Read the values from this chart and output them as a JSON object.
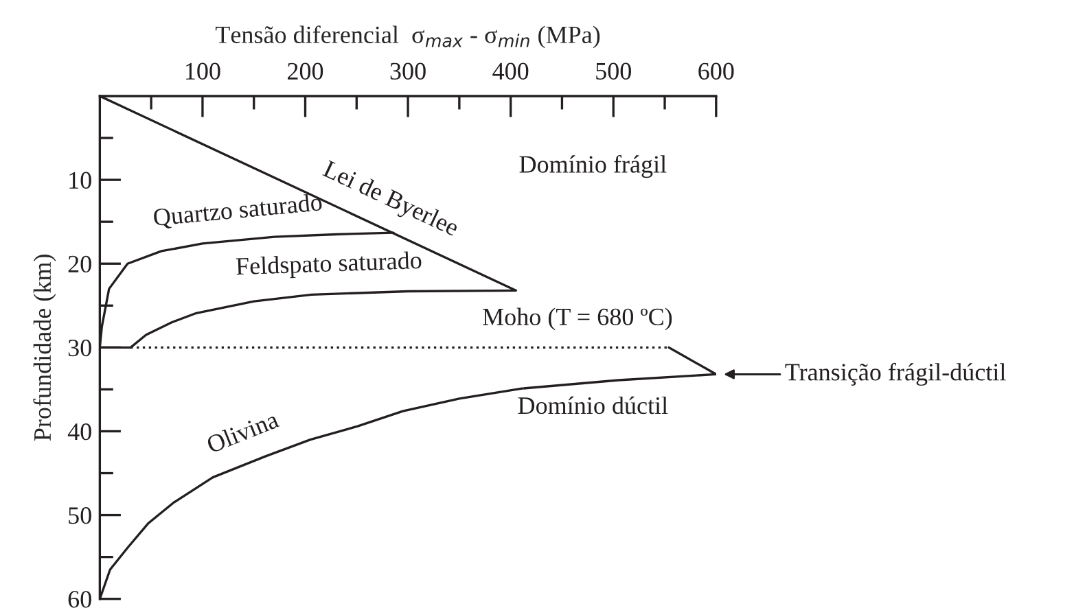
{
  "chart_data": {
    "type": "line",
    "xlabel": "Tensão diferencial  σ$_{max}$ - σ$_{min}$ (MPa)",
    "ylabel": "Profundidade (km)",
    "xlim": [
      0,
      600
    ],
    "ylim": [
      60,
      0
    ],
    "xticks": [
      {
        "value": 50,
        "label": null
      },
      100,
      {
        "value": 150,
        "label": null
      },
      200,
      {
        "value": 250,
        "label": null
      },
      300,
      {
        "value": 350,
        "label": null
      },
      400,
      {
        "value": 450,
        "label": null
      },
      500,
      {
        "value": 550,
        "label": null
      },
      600
    ],
    "yticks": [
      {
        "value": 5,
        "label": null
      },
      10,
      {
        "value": 15,
        "label": null
      },
      20,
      {
        "value": 25,
        "label": null
      },
      30,
      {
        "value": 35,
        "label": null
      },
      40,
      {
        "value": 45,
        "label": null
      },
      50,
      {
        "value": 55,
        "label": null
      },
      60
    ],
    "grid": false,
    "legend": false,
    "marker": "none",
    "series": [
      {
        "color": "#231f20",
        "x": [
          0,
          405
        ],
        "values": [
          0,
          23.2
        ]
      },
      {
        "color": "#231f20",
        "x": [
          0,
          2,
          9,
          27,
          60,
          100,
          170,
          230,
          286
        ],
        "values": [
          30,
          27.5,
          23,
          20,
          18.5,
          17.6,
          16.8,
          16.5,
          16.3
        ]
      },
      {
        "color": "#231f20",
        "x": [
          0,
          30,
          45,
          70,
          94,
          150,
          206,
          300,
          405
        ],
        "values": [
          30,
          30,
          28.5,
          27,
          25.9,
          24.5,
          23.7,
          23.3,
          23.2
        ]
      },
      {
        "color": "#231f20",
        "line_style": "dotted",
        "x": [
          30,
          554
        ],
        "values": [
          30,
          30
        ]
      },
      {
        "color": "#231f20",
        "x": [
          554,
          600
        ],
        "values": [
          30,
          33.2
        ]
      },
      {
        "color": "#231f20",
        "x": [
          0,
          10,
          27,
          47,
          72,
          110,
          161,
          205,
          251,
          295,
          350,
          411,
          505,
          600
        ],
        "values": [
          60,
          56.5,
          53.9,
          51,
          48.5,
          45.5,
          43,
          41,
          39.4,
          37.6,
          36.1,
          34.9,
          33.9,
          33.2
        ]
      }
    ],
    "annotations": [
      {
        "text": "Lei de Byerlee",
        "x": 271,
        "y": 15.5
      },
      {
        "text": "Quartzo saturado",
        "x": 137,
        "y": 17.2
      },
      {
        "text": "Feldspato saturado",
        "x": 224,
        "y": 23.6
      },
      {
        "text": "Moho (T = 680 ºC)",
        "x": 465,
        "y": 30
      },
      {
        "text": "Olivina",
        "x": 150,
        "y": 43.5
      },
      {
        "text": "Transição frágil-dúctil",
        "x": 600,
        "y": 33.2
      },
      "Domínio frágil",
      "Domínio dúctil"
    ]
  }
}
